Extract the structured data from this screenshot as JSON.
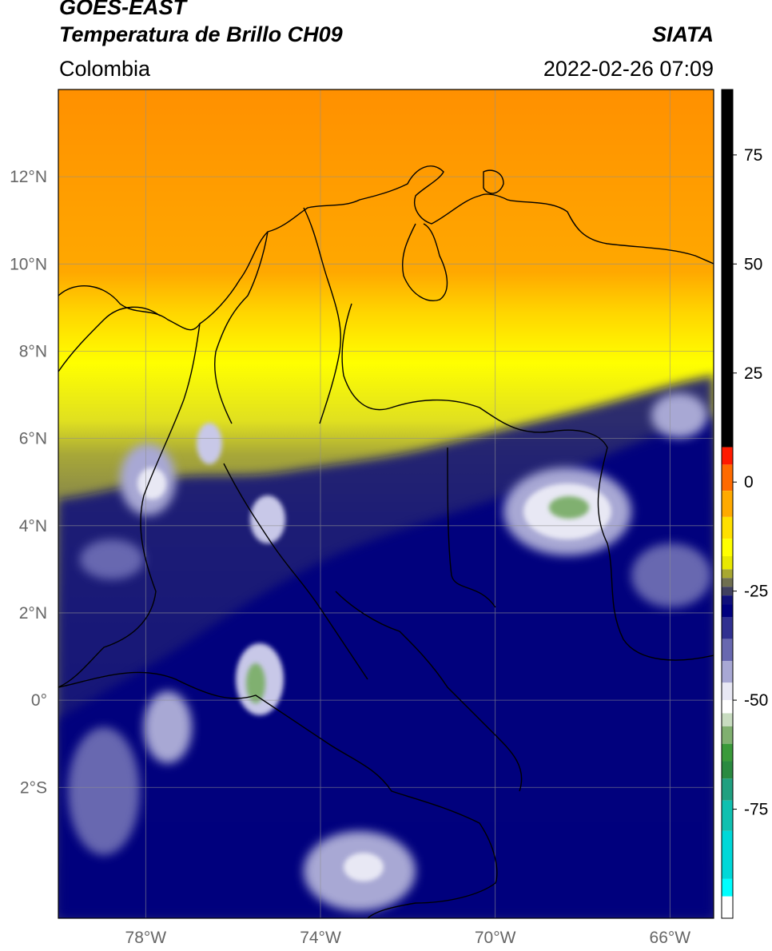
{
  "header": {
    "satellite": "GOES-EAST",
    "product": "Temperatura de Brillo CH09",
    "agency": "SIATA",
    "region": "Colombia",
    "datetime": "2022-02-26 07:09"
  },
  "map": {
    "lon_range": [
      -80,
      -65
    ],
    "lat_range": [
      -5,
      14
    ],
    "lat_ticks": [
      {
        "value": 12,
        "label": "12°N"
      },
      {
        "value": 10,
        "label": "10°N"
      },
      {
        "value": 8,
        "label": "8°N"
      },
      {
        "value": 6,
        "label": "6°N"
      },
      {
        "value": 4,
        "label": "4°N"
      },
      {
        "value": 2,
        "label": "2°N"
      },
      {
        "value": 0,
        "label": "0°"
      },
      {
        "value": -2,
        "label": "2°S"
      }
    ],
    "lon_ticks": [
      {
        "value": -78,
        "label": "78°W"
      },
      {
        "value": -74,
        "label": "74°W"
      },
      {
        "value": -70,
        "label": "70°W"
      },
      {
        "value": -66,
        "label": "66°W"
      }
    ],
    "gridlines": true
  },
  "colorbar": {
    "range": [
      -100,
      90
    ],
    "ticks": [
      {
        "value": 75,
        "label": "75"
      },
      {
        "value": 50,
        "label": "50"
      },
      {
        "value": 25,
        "label": "25"
      },
      {
        "value": 0,
        "label": "0"
      },
      {
        "value": -25,
        "label": "-25"
      },
      {
        "value": -50,
        "label": "-50"
      },
      {
        "value": -75,
        "label": "-75"
      }
    ],
    "segments": [
      {
        "from": 8,
        "to": 90,
        "color": "#000000"
      },
      {
        "from": 4,
        "to": 8,
        "color": "#ff1a00"
      },
      {
        "from": -2,
        "to": 4,
        "color": "#ff6a00"
      },
      {
        "from": -8,
        "to": -2,
        "color": "#ffaa00"
      },
      {
        "from": -13,
        "to": -8,
        "color": "#ffe000"
      },
      {
        "from": -17,
        "to": -13,
        "color": "#ffff00"
      },
      {
        "from": -20,
        "to": -17,
        "color": "#e8e800"
      },
      {
        "from": -22,
        "to": -20,
        "color": "#a8a830"
      },
      {
        "from": -24,
        "to": -22,
        "color": "#707050"
      },
      {
        "from": -26,
        "to": -24,
        "color": "#404060"
      },
      {
        "from": -28,
        "to": -26,
        "color": "#10107a"
      },
      {
        "from": -31,
        "to": -28,
        "color": "#00007e"
      },
      {
        "from": -36,
        "to": -31,
        "color": "#303090"
      },
      {
        "from": -41,
        "to": -36,
        "color": "#6868b0"
      },
      {
        "from": -46,
        "to": -41,
        "color": "#a8a8d4"
      },
      {
        "from": -50,
        "to": -46,
        "color": "#e8e8f4"
      },
      {
        "from": -53,
        "to": -50,
        "color": "#ffffff"
      },
      {
        "from": -56,
        "to": -53,
        "color": "#c8dcc0"
      },
      {
        "from": -60,
        "to": -56,
        "color": "#80b070"
      },
      {
        "from": -64,
        "to": -60,
        "color": "#3a9a3a"
      },
      {
        "from": -68,
        "to": -64,
        "color": "#2a8a40"
      },
      {
        "from": -73,
        "to": -68,
        "color": "#20a080"
      },
      {
        "from": -80,
        "to": -73,
        "color": "#10c0b0"
      },
      {
        "from": -91,
        "to": -80,
        "color": "#00d8d8"
      },
      {
        "from": -95,
        "to": -91,
        "color": "#00ffff"
      },
      {
        "from": -100,
        "to": -95,
        "color": "#ffffff"
      }
    ]
  }
}
